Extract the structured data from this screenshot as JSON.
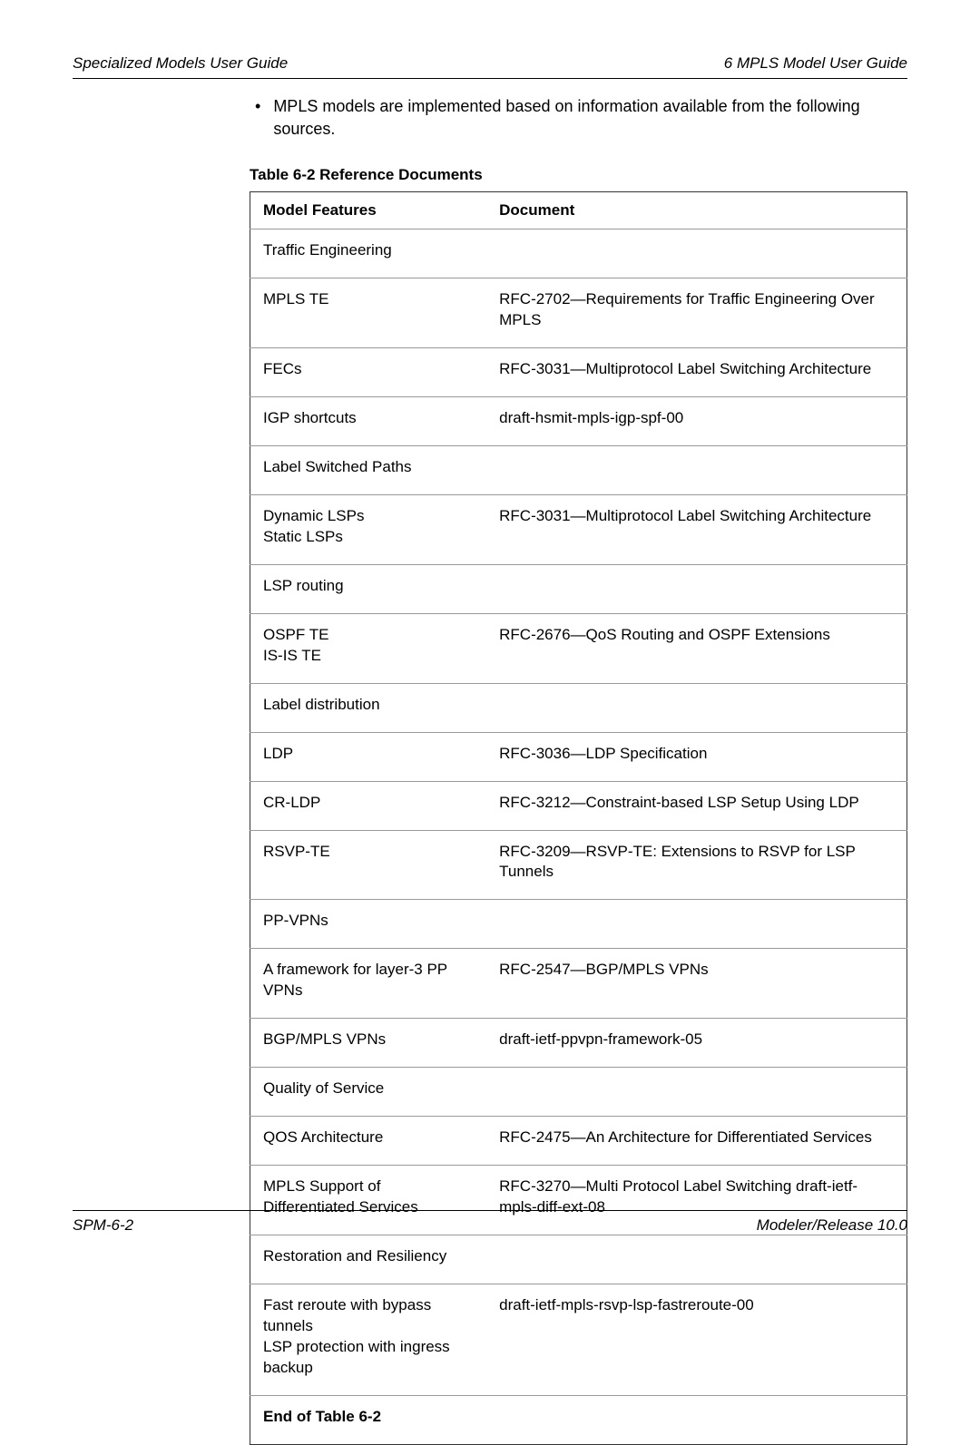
{
  "header": {
    "left": "Specialized Models User Guide",
    "right": "6   MPLS Model User Guide"
  },
  "bullet": {
    "text": "MPLS models are implemented based on information available from the following sources."
  },
  "table": {
    "caption": "Table 6-2   Reference Documents",
    "columns": [
      "Model Features",
      "Document"
    ],
    "rows": [
      [
        "Traffic Engineering",
        ""
      ],
      [
        "MPLS TE",
        "RFC-2702—Requirements for Traffic Engineering Over MPLS"
      ],
      [
        "FECs",
        "RFC-3031—Multiprotocol Label Switching Architecture"
      ],
      [
        "IGP shortcuts",
        "draft-hsmit-mpls-igp-spf-00"
      ],
      [
        "Label Switched Paths",
        ""
      ],
      [
        "Dynamic LSPs\nStatic LSPs",
        "RFC-3031—Multiprotocol Label Switching Architecture"
      ],
      [
        "LSP routing",
        ""
      ],
      [
        "OSPF TE\nIS-IS TE",
        "RFC-2676—QoS Routing and OSPF Extensions"
      ],
      [
        "Label distribution",
        ""
      ],
      [
        "LDP",
        "RFC-3036—LDP Specification"
      ],
      [
        "CR-LDP",
        "RFC-3212—Constraint-based LSP Setup Using LDP"
      ],
      [
        "RSVP-TE",
        "RFC-3209—RSVP-TE: Extensions to RSVP for LSP Tunnels"
      ],
      [
        "PP-VPNs",
        ""
      ],
      [
        "A framework for layer-3 PP VPNs",
        "RFC-2547—BGP/MPLS VPNs"
      ],
      [
        "BGP/MPLS VPNs",
        "draft-ietf-ppvpn-framework-05"
      ],
      [
        "Quality of Service",
        ""
      ],
      [
        "QOS Architecture",
        "RFC-2475—An Architecture for Differentiated Services"
      ],
      [
        "MPLS Support of Differentiated Services",
        "RFC-3270—Multi Protocol Label Switching draft-ietf-mpls-diff-ext-08"
      ],
      [
        "Restoration and Resiliency",
        ""
      ],
      [
        "Fast reroute with bypass tunnels\nLSP protection with ingress backup",
        "draft-ietf-mpls-rsvp-lsp-fastreroute-00"
      ]
    ],
    "end_label": "End of Table 6-2"
  },
  "footer": {
    "left": "SPM-6-2",
    "right": "Modeler/Release 10.0"
  }
}
